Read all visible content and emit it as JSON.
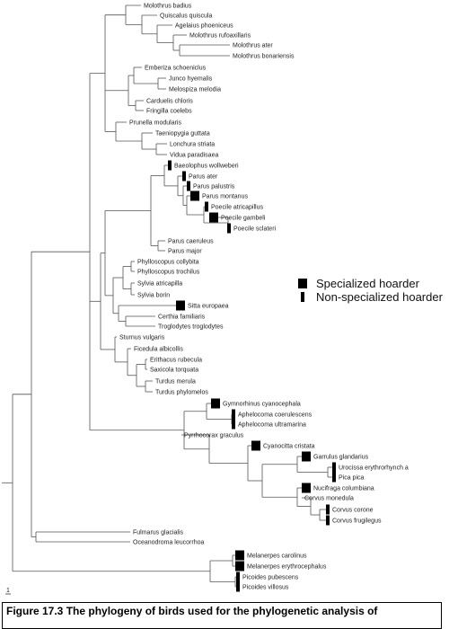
{
  "taxa": [
    {
      "name": "Molothrus badius",
      "marker": "none"
    },
    {
      "name": "Quiscalus quiscula",
      "marker": "none"
    },
    {
      "name": "Agelaius phoeniceus",
      "marker": "none"
    },
    {
      "name": "Molothrus rufoaxillaris",
      "marker": "none"
    },
    {
      "name": "Molothrus ater",
      "marker": "none"
    },
    {
      "name": "Molothrus bonariensis",
      "marker": "none"
    },
    {
      "name": "Emberiza schoeniclus",
      "marker": "none"
    },
    {
      "name": "Junco hyemalis",
      "marker": "none"
    },
    {
      "name": "Melospiza melodia",
      "marker": "none"
    },
    {
      "name": "Carduelis chloris",
      "marker": "none"
    },
    {
      "name": "Fringilla coelebs",
      "marker": "none"
    },
    {
      "name": "Prunella modularis",
      "marker": "none"
    },
    {
      "name": "Taeniopygia guttata",
      "marker": "none"
    },
    {
      "name": "Lonchura striata",
      "marker": "none"
    },
    {
      "name": "Vidua paradisaea",
      "marker": "none"
    },
    {
      "name": "Baeolophus wollweberi",
      "marker": "non"
    },
    {
      "name": "Parus ater",
      "marker": "non"
    },
    {
      "name": "Parus palustris",
      "marker": "non"
    },
    {
      "name": "Parus montanus",
      "marker": "spec"
    },
    {
      "name": "Poecile atricapillus",
      "marker": "non"
    },
    {
      "name": "Poecile gambeli",
      "marker": "spec"
    },
    {
      "name": "Poecile sclateri",
      "marker": "non"
    },
    {
      "name": "Parus caeruleus",
      "marker": "none"
    },
    {
      "name": "Parus major",
      "marker": "none"
    },
    {
      "name": "Phylloscopus collybita",
      "marker": "none"
    },
    {
      "name": "Phylloscopus trochilus",
      "marker": "none"
    },
    {
      "name": "Sylvia atricapilla",
      "marker": "none"
    },
    {
      "name": "Sylvia borin",
      "marker": "none"
    },
    {
      "name": "Sitta europaea",
      "marker": "spec"
    },
    {
      "name": "Certhia familiaris",
      "marker": "none"
    },
    {
      "name": "Troglodytes troglodytes",
      "marker": "none"
    },
    {
      "name": "Sturnus vulgaris",
      "marker": "none"
    },
    {
      "name": "Ficedula albicollis",
      "marker": "none"
    },
    {
      "name": "Erithacus rubecula",
      "marker": "none"
    },
    {
      "name": "Saxicola torquata",
      "marker": "none"
    },
    {
      "name": "Turdus merula",
      "marker": "none"
    },
    {
      "name": "Turdus phylomelos",
      "marker": "none"
    },
    {
      "name": "Gymnorhinus cyanocephala",
      "marker": "spec"
    },
    {
      "name": "Aphelocoma coerulescens",
      "marker": "non"
    },
    {
      "name": "Aphelocoma ultramarina",
      "marker": "non"
    },
    {
      "name": "Pyrrhocorax graculus",
      "marker": "none"
    },
    {
      "name": "Cyanocitta cristata",
      "marker": "spec"
    },
    {
      "name": "Garrulus glandarius",
      "marker": "spec"
    },
    {
      "name": "Urocissa erythrorhynch a",
      "marker": "non"
    },
    {
      "name": "Pica pica",
      "marker": "non"
    },
    {
      "name": "Nucifraga columbiana",
      "marker": "spec"
    },
    {
      "name": "Corvus monedula",
      "marker": "none"
    },
    {
      "name": "Corvus corone",
      "marker": "non"
    },
    {
      "name": "Corvus frugilegus",
      "marker": "non"
    },
    {
      "name": "Fulmarus glacialis",
      "marker": "none"
    },
    {
      "name": "Oceanodroma leucorrhoa",
      "marker": "none"
    },
    {
      "name": "Melanerpes carolinus",
      "marker": "spec"
    },
    {
      "name": "Melanerpes erythrocephalus",
      "marker": "spec"
    },
    {
      "name": "Picoides pubescens",
      "marker": "non"
    },
    {
      "name": "Picoides villosus",
      "marker": "non"
    }
  ],
  "legend": {
    "specialized": "Specialized hoarder",
    "non_specialized": "Non-specialized hoarder"
  },
  "scale_label": "1",
  "caption": "Figure 17.3 The phylogeny of birds used for the phylogenetic analysis of",
  "colors": {
    "branch": "#555555",
    "marker": "#000000",
    "text": "#222222"
  }
}
